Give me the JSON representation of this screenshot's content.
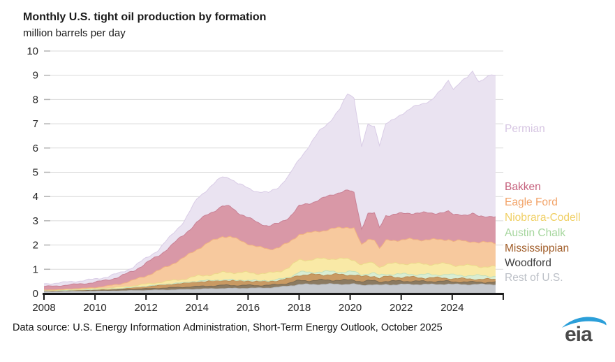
{
  "title": "Monthly U.S. tight oil production by formation",
  "subtitle": "million barrels per day",
  "footer": {
    "source_text": "Data source: U.S. Energy Information Administration, Short-Term Energy Outlook, October 2025"
  },
  "logo": {
    "text": "eia",
    "swoosh_color": "#2b9fd9",
    "text_color": "#4a4a4a"
  },
  "axis_colors": {
    "gridline": "#d9d9d9",
    "gridline_tick": "#b3b3b3",
    "axis": "#1a1a1a",
    "label": "#262626"
  },
  "chart_data": {
    "type": "area",
    "stacked": true,
    "title": "Monthly U.S. tight oil production by formation",
    "ylabel": "million barrels per day",
    "ylim": [
      0,
      10
    ],
    "y_ticks": [
      0,
      1,
      2,
      3,
      4,
      5,
      6,
      7,
      8,
      9,
      10
    ],
    "x_ticks": [
      {
        "v": 2008,
        "label": "2008"
      },
      {
        "v": 2010,
        "label": "2010"
      },
      {
        "v": 2012,
        "label": "2012"
      },
      {
        "v": 2014,
        "label": "2014"
      },
      {
        "v": 2016,
        "label": "2016"
      },
      {
        "v": 2018,
        "label": "2018"
      },
      {
        "v": 2020,
        "label": "2020"
      },
      {
        "v": 2022,
        "label": "2022"
      },
      {
        "v": 2024,
        "label": "2024"
      },
      {
        "v": 2026,
        "label": ""
      }
    ],
    "grid": true,
    "legend_position": "right",
    "x": [
      2008,
      2008.5,
      2009,
      2009.5,
      2010,
      2010.5,
      2011,
      2011.5,
      2012,
      2012.5,
      2013,
      2013.5,
      2014,
      2014.4,
      2014.8,
      2015,
      2015.3,
      2015.6,
      2016,
      2016.4,
      2016.8,
      2017.2,
      2017.6,
      2018,
      2018.4,
      2018.8,
      2019.2,
      2019.6,
      2019.9,
      2020.15,
      2020.45,
      2020.7,
      2020.95,
      2021.15,
      2021.4,
      2021.7,
      2022,
      2022.4,
      2022.8,
      2023.2,
      2023.6,
      2023.85,
      2024.05,
      2024.3,
      2024.6,
      2024.8,
      2025.05,
      2025.3,
      2025.55,
      2025.7
    ],
    "series": [
      {
        "name": "Permian",
        "fill": "#eae3f1",
        "edge": "#d9cce6",
        "label_color": "#d6c5e2",
        "values": [
          0.11,
          0.12,
          0.12,
          0.13,
          0.13,
          0.14,
          0.15,
          0.17,
          0.2,
          0.26,
          0.41,
          0.57,
          0.95,
          1.05,
          1.16,
          1.19,
          1.2,
          1.18,
          1.22,
          1.29,
          1.36,
          1.52,
          1.71,
          1.94,
          2.39,
          2.82,
          3.08,
          3.41,
          4.0,
          3.96,
          3.37,
          3.65,
          3.6,
          3.45,
          3.78,
          3.89,
          4.11,
          4.33,
          4.48,
          4.69,
          5.06,
          5.44,
          5.21,
          5.43,
          5.65,
          5.87,
          5.59,
          5.71,
          5.8,
          5.79
        ]
      },
      {
        "name": "Bakken",
        "fill": "#d998a7",
        "edge": "#c98296",
        "label_color": "#c5607c",
        "values": [
          0.14,
          0.16,
          0.17,
          0.19,
          0.21,
          0.25,
          0.3,
          0.39,
          0.51,
          0.62,
          0.78,
          0.95,
          1.12,
          1.18,
          1.23,
          1.25,
          1.22,
          1.14,
          1.06,
          1.0,
          0.96,
          0.98,
          1.05,
          1.15,
          1.22,
          1.3,
          1.38,
          1.48,
          1.5,
          1.45,
          0.7,
          1.05,
          1.05,
          0.86,
          1.05,
          1.06,
          1.08,
          1.09,
          1.1,
          1.1,
          1.11,
          1.12,
          1.08,
          1.1,
          1.1,
          1.12,
          1.06,
          1.09,
          1.1,
          1.07
        ]
      },
      {
        "name": "Eagle Ford",
        "fill": "#f7c99e",
        "edge": "#f0b181",
        "label_color": "#f2a368",
        "values": [
          0.01,
          0.01,
          0.02,
          0.03,
          0.04,
          0.08,
          0.13,
          0.22,
          0.35,
          0.48,
          0.68,
          0.88,
          1.12,
          1.3,
          1.45,
          1.5,
          1.47,
          1.35,
          1.2,
          1.08,
          1.0,
          0.99,
          1.02,
          1.06,
          1.1,
          1.15,
          1.2,
          1.28,
          1.33,
          1.3,
          0.8,
          1.0,
          1.0,
          0.75,
          0.95,
          0.97,
          0.98,
          0.99,
          1.0,
          1.0,
          1.01,
          1.02,
          0.99,
          1.0,
          1.0,
          1.01,
          0.98,
          0.99,
          1.0,
          0.99
        ]
      },
      {
        "name": "Niobrara-Codell",
        "fill": "#f9e9a6",
        "edge": "#ecd98b",
        "label_color": "#f0cf63",
        "values": [
          0.02,
          0.02,
          0.03,
          0.03,
          0.04,
          0.05,
          0.06,
          0.07,
          0.09,
          0.11,
          0.13,
          0.16,
          0.21,
          0.24,
          0.27,
          0.3,
          0.32,
          0.32,
          0.32,
          0.31,
          0.31,
          0.34,
          0.4,
          0.51,
          0.52,
          0.53,
          0.54,
          0.54,
          0.53,
          0.5,
          0.4,
          0.42,
          0.42,
          0.36,
          0.42,
          0.43,
          0.44,
          0.44,
          0.44,
          0.44,
          0.44,
          0.44,
          0.42,
          0.42,
          0.41,
          0.41,
          0.39,
          0.39,
          0.38,
          0.38
        ]
      },
      {
        "name": "Austin Chalk",
        "fill": "#d9edd3",
        "edge": "#c3e0bb",
        "label_color": "#a5d69d",
        "values": [
          0.01,
          0.01,
          0.01,
          0.01,
          0.01,
          0.01,
          0.01,
          0.01,
          0.01,
          0.01,
          0.01,
          0.01,
          0.02,
          0.02,
          0.02,
          0.02,
          0.02,
          0.02,
          0.02,
          0.02,
          0.02,
          0.03,
          0.06,
          0.11,
          0.11,
          0.12,
          0.12,
          0.12,
          0.12,
          0.12,
          0.1,
          0.11,
          0.11,
          0.09,
          0.11,
          0.12,
          0.12,
          0.13,
          0.13,
          0.13,
          0.14,
          0.14,
          0.14,
          0.14,
          0.14,
          0.14,
          0.14,
          0.14,
          0.14,
          0.14
        ]
      },
      {
        "name": "Mississippian",
        "fill": "#c99a63",
        "edge": "#b88a52",
        "label_color": "#a05c28",
        "values": [
          0.01,
          0.01,
          0.01,
          0.02,
          0.02,
          0.03,
          0.04,
          0.06,
          0.09,
          0.12,
          0.15,
          0.17,
          0.19,
          0.2,
          0.2,
          0.2,
          0.2,
          0.19,
          0.18,
          0.17,
          0.16,
          0.17,
          0.18,
          0.24,
          0.23,
          0.23,
          0.23,
          0.22,
          0.22,
          0.22,
          0.19,
          0.2,
          0.2,
          0.17,
          0.18,
          0.17,
          0.16,
          0.16,
          0.15,
          0.14,
          0.14,
          0.14,
          0.13,
          0.13,
          0.13,
          0.13,
          0.12,
          0.12,
          0.12,
          0.12
        ]
      },
      {
        "name": "Woodford",
        "fill": "#8b7a61",
        "edge": "#7a6a52",
        "label_color": "#3d3d3d",
        "values": [
          0.02,
          0.02,
          0.03,
          0.03,
          0.04,
          0.04,
          0.05,
          0.06,
          0.07,
          0.08,
          0.09,
          0.1,
          0.11,
          0.12,
          0.12,
          0.13,
          0.13,
          0.12,
          0.12,
          0.11,
          0.11,
          0.11,
          0.12,
          0.16,
          0.16,
          0.17,
          0.17,
          0.17,
          0.17,
          0.17,
          0.15,
          0.16,
          0.16,
          0.14,
          0.15,
          0.15,
          0.14,
          0.14,
          0.13,
          0.13,
          0.12,
          0.12,
          0.11,
          0.11,
          0.1,
          0.1,
          0.1,
          0.09,
          0.09,
          0.09
        ]
      },
      {
        "name": "Rest of U.S.",
        "fill": "#c6c9ce",
        "edge": "#b6bac0",
        "label_color": "#bcc0c7",
        "values": [
          0.08,
          0.08,
          0.09,
          0.09,
          0.1,
          0.1,
          0.11,
          0.12,
          0.13,
          0.14,
          0.15,
          0.16,
          0.18,
          0.19,
          0.2,
          0.21,
          0.21,
          0.21,
          0.22,
          0.22,
          0.23,
          0.26,
          0.31,
          0.37,
          0.37,
          0.38,
          0.38,
          0.38,
          0.38,
          0.38,
          0.34,
          0.36,
          0.36,
          0.33,
          0.36,
          0.36,
          0.37,
          0.37,
          0.37,
          0.37,
          0.38,
          0.38,
          0.37,
          0.37,
          0.37,
          0.37,
          0.37,
          0.37,
          0.37,
          0.37
        ]
      }
    ]
  }
}
